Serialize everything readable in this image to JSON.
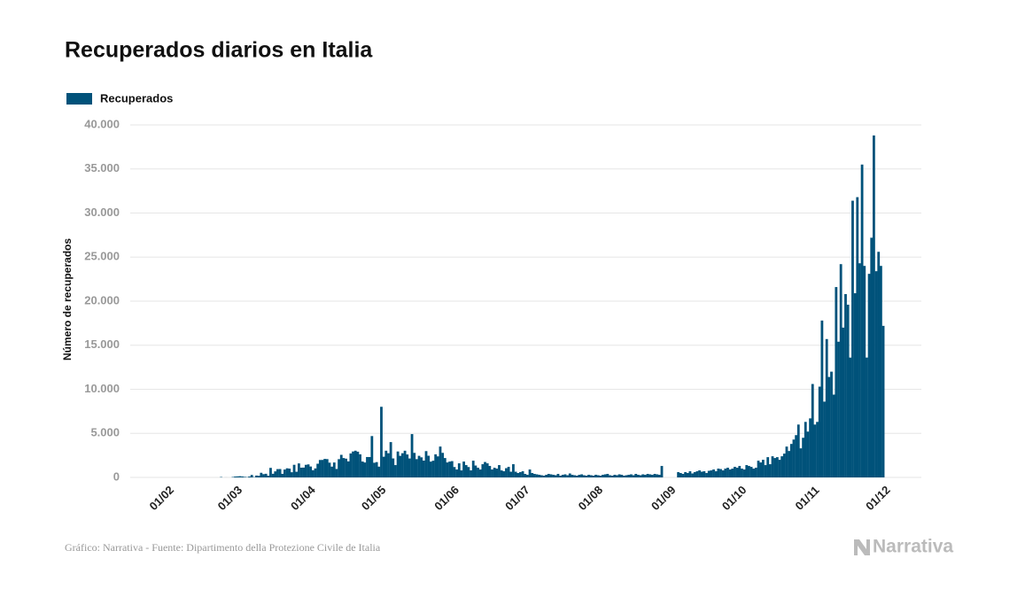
{
  "chart_data": {
    "type": "bar",
    "title": "Recuperados diarios en Italia",
    "y_label": "Número de recuperados",
    "source": "Gráfico: Narrativa - Fuente: Dipartimento della Protezione Civile de Italia",
    "logo": "Narrativa",
    "ylim": [
      0,
      40000
    ],
    "yticks": [
      0,
      {
        "value": 5000,
        "label": "5.000"
      },
      {
        "value": 10000,
        "label": "10.000"
      },
      {
        "value": 15000,
        "label": "15.000"
      },
      {
        "value": 20000,
        "label": "20.000"
      },
      {
        "value": 25000,
        "label": "25.000"
      },
      {
        "value": 30000,
        "label": "30.000"
      },
      {
        "value": 35000,
        "label": "35.000"
      },
      {
        "value": 40000,
        "label": "40.000"
      }
    ],
    "grid": true,
    "legend": "top-left",
    "categories": [
      "01/02",
      null,
      null,
      null,
      null,
      null,
      null,
      null,
      null,
      null,
      null,
      null,
      null,
      null,
      null,
      null,
      null,
      null,
      null,
      null,
      null,
      null,
      null,
      null,
      null,
      null,
      null,
      null,
      null,
      "01/03",
      null,
      null,
      null,
      null,
      null,
      null,
      null,
      null,
      null,
      null,
      null,
      null,
      null,
      null,
      null,
      null,
      null,
      null,
      null,
      null,
      null,
      null,
      null,
      null,
      null,
      null,
      null,
      null,
      null,
      null,
      "01/04",
      null,
      null,
      null,
      null,
      null,
      null,
      null,
      null,
      null,
      null,
      null,
      null,
      null,
      null,
      null,
      null,
      null,
      null,
      null,
      null,
      null,
      null,
      null,
      null,
      null,
      null,
      null,
      null,
      null,
      "01/05",
      null,
      null,
      null,
      null,
      null,
      null,
      null,
      null,
      null,
      null,
      null,
      null,
      null,
      null,
      null,
      null,
      null,
      null,
      null,
      null,
      null,
      null,
      null,
      null,
      null,
      null,
      null,
      null,
      null,
      null,
      "01/06",
      null,
      null,
      null,
      null,
      null,
      null,
      null,
      null,
      null,
      null,
      null,
      null,
      null,
      null,
      null,
      null,
      null,
      null,
      null,
      null,
      null,
      null,
      null,
      null,
      null,
      null,
      null,
      null,
      null,
      "01/07",
      null,
      null,
      null,
      null,
      null,
      null,
      null,
      null,
      null,
      null,
      null,
      null,
      null,
      null,
      null,
      null,
      null,
      null,
      null,
      null,
      null,
      null,
      null,
      null,
      null,
      null,
      null,
      null,
      null,
      null,
      "01/08",
      null,
      null,
      null,
      null,
      null,
      null,
      null,
      null,
      null,
      null,
      null,
      null,
      null,
      null,
      null,
      null,
      null,
      null,
      null,
      null,
      null,
      null,
      null,
      null,
      null,
      null,
      null,
      null,
      null,
      null,
      "01/09",
      null,
      null,
      null,
      null,
      null,
      null,
      null,
      null,
      null,
      null,
      null,
      null,
      null,
      null,
      null,
      null,
      null,
      null,
      null,
      null,
      null,
      null,
      null,
      null,
      null,
      null,
      null,
      null,
      null,
      "01/10",
      null,
      null,
      null,
      null,
      null,
      null,
      null,
      null,
      null,
      null,
      null,
      null,
      null,
      null,
      null,
      null,
      null,
      null,
      null,
      null,
      null,
      null,
      null,
      null,
      null,
      null,
      null,
      null,
      null,
      null,
      "01/11",
      null,
      null,
      null,
      null,
      null,
      null,
      null,
      null,
      null,
      null,
      null,
      null,
      null,
      null,
      null,
      null,
      null,
      null,
      null,
      null,
      null,
      null,
      null,
      null,
      null,
      null,
      null,
      null,
      null,
      "01/12",
      null,
      null
    ],
    "series": [
      {
        "name": "Recuperados",
        "color": "#00527a",
        "values": [
          0,
          0,
          0,
          0,
          0,
          0,
          0,
          0,
          0,
          0,
          0,
          0,
          0,
          0,
          0,
          0,
          0,
          0,
          0,
          0,
          0,
          0,
          0,
          1,
          0,
          42,
          0,
          4,
          1,
          0,
          50,
          102,
          116,
          138,
          109,
          66,
          33,
          102,
          280,
          41,
          213,
          181,
          527,
          369,
          414,
          192,
          1084,
          415,
          689,
          943,
          952,
          408,
          894,
          1036,
          999,
          589,
          1434,
          646,
          1590,
          1109,
          1118,
          1431,
          1480,
          1238,
          819,
          1022,
          1555,
          1979,
          1985,
          2099,
          2079,
          1677,
          1224,
          1695,
          962,
          2072,
          2563,
          2200,
          2128,
          1822,
          2723,
          2943,
          3033,
          2922,
          2622,
          1808,
          1696,
          2317,
          2311,
          4693,
          1665,
          1740,
          1225,
          8014,
          2352,
          3031,
          2747,
          4008,
          2155,
          1401,
          2943,
          2452,
          2747,
          3031,
          2605,
          2150,
          4917,
          2785,
          2075,
          2452,
          2278,
          1910,
          2986,
          2460,
          1795,
          1900,
          2620,
          2390,
          3503,
          2789,
          2200,
          1700,
          1800,
          1850,
          1180,
          900,
          1600,
          800,
          1800,
          1400,
          1180,
          800,
          1900,
          1350,
          1100,
          900,
          1500,
          1750,
          1600,
          1300,
          900,
          1100,
          1000,
          1400,
          800,
          700,
          1050,
          1200,
          650,
          1500,
          650,
          500,
          600,
          700,
          400,
          300,
          900,
          500,
          400,
          350,
          300,
          250,
          200,
          300,
          400,
          350,
          300,
          250,
          400,
          200,
          300,
          350,
          250,
          450,
          300,
          250,
          200,
          300,
          350,
          250,
          200,
          300,
          250,
          200,
          300,
          250,
          200,
          300,
          350,
          400,
          250,
          200,
          300,
          250,
          350,
          300,
          200,
          250,
          300,
          350,
          250,
          400,
          300,
          250,
          350,
          300,
          400,
          350,
          300,
          400,
          350,
          300,
          1300,
          0,
          0,
          0,
          0,
          0,
          0,
          600,
          500,
          400,
          600,
          500,
          700,
          450,
          600,
          700,
          800,
          650,
          700,
          500,
          750,
          800,
          900,
          700,
          1000,
          950,
          800,
          1000,
          1100,
          900,
          1000,
          1200,
          1100,
          1300,
          1000,
          900,
          1400,
          1300,
          1200,
          1000,
          1100,
          1900,
          1700,
          2000,
          1400,
          2300,
          1500,
          2400,
          2200,
          2300,
          2000,
          2400,
          2700,
          3500,
          3000,
          3800,
          4300,
          4800,
          6000,
          3300,
          4500,
          6300,
          5200,
          6700,
          10600,
          6000,
          6300,
          10300,
          17800,
          8600,
          15700,
          11400,
          12000,
          9400,
          21600,
          15400,
          24200,
          17000,
          20800,
          19600,
          13600,
          31400,
          20900,
          31800,
          24300,
          35500,
          24000,
          13600,
          23100,
          27200,
          38800,
          23400,
          25600,
          24000,
          17200
        ]
      }
    ]
  }
}
